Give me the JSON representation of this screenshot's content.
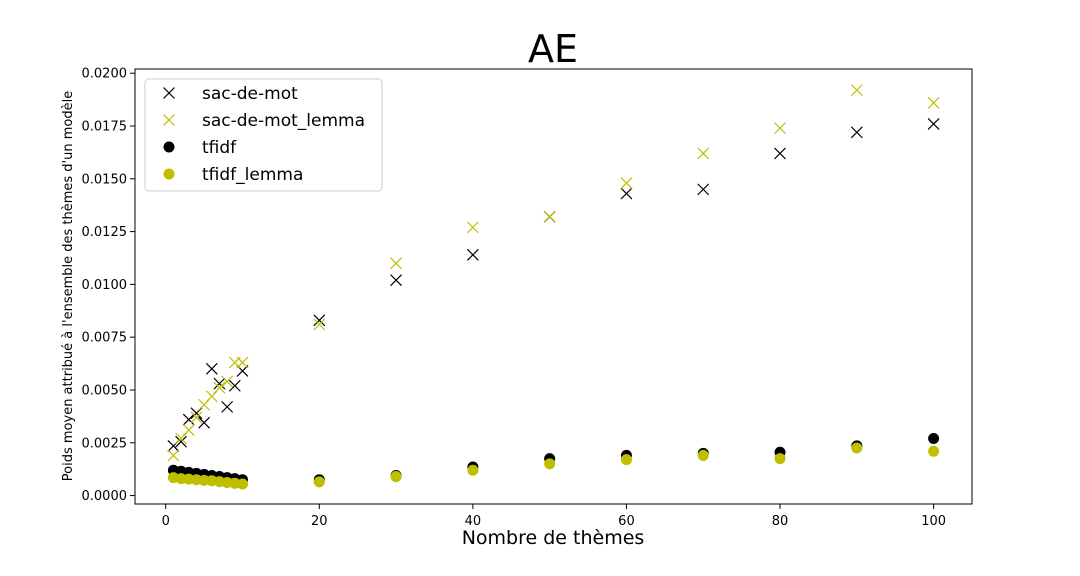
{
  "chart_data": {
    "type": "scatter",
    "title": "AE",
    "xlabel": "Nombre de thèmes",
    "ylabel": "Poids moyen attribué à l'ensemble des thèmes d'un modèle",
    "xlim": [
      -4,
      105
    ],
    "ylim": [
      -0.0004,
      0.0202
    ],
    "xticks": [
      0,
      20,
      40,
      60,
      80,
      100
    ],
    "yticks": [
      0.0,
      0.0025,
      0.005,
      0.0075,
      0.01,
      0.0125,
      0.015,
      0.0175,
      0.02
    ],
    "ytick_labels": [
      "0.0000",
      "0.0025",
      "0.0050",
      "0.0075",
      "0.0100",
      "0.0125",
      "0.0150",
      "0.0175",
      "0.0200"
    ],
    "xtick_labels": [
      "0",
      "20",
      "40",
      "60",
      "80",
      "100"
    ],
    "grid": false,
    "legend_position": "top-left",
    "x": [
      1,
      2,
      3,
      4,
      5,
      6,
      7,
      8,
      9,
      10,
      20,
      30,
      40,
      50,
      60,
      70,
      80,
      90,
      100
    ],
    "series": [
      {
        "name": "sac-de-mot",
        "marker": "x",
        "color": "#000000",
        "values": [
          0.00235,
          0.00255,
          0.0036,
          0.0039,
          0.00345,
          0.006,
          0.0053,
          0.0042,
          0.0052,
          0.0059,
          0.0083,
          0.0102,
          0.0114,
          0.0132,
          0.0143,
          0.0145,
          0.0162,
          0.0172,
          0.0176
        ]
      },
      {
        "name": "sac-de-mot_lemma",
        "marker": "x",
        "color": "#bfbf00",
        "values": [
          0.0019,
          0.0027,
          0.0031,
          0.0037,
          0.0043,
          0.0047,
          0.0051,
          0.0054,
          0.0063,
          0.0063,
          0.0081,
          0.011,
          0.0127,
          0.0132,
          0.0148,
          0.0162,
          0.0174,
          0.0192,
          0.0186
        ]
      },
      {
        "name": "tfidf",
        "marker": "o",
        "color": "#000000",
        "values": [
          0.0012,
          0.00115,
          0.0011,
          0.00105,
          0.001,
          0.00095,
          0.0009,
          0.00085,
          0.0008,
          0.00075,
          0.00075,
          0.00095,
          0.00135,
          0.00175,
          0.0019,
          0.002,
          0.00205,
          0.00235,
          0.0027
        ]
      },
      {
        "name": "tfidf_lemma",
        "marker": "o",
        "color": "#bfbf00",
        "values": [
          0.00085,
          0.0008,
          0.00078,
          0.00075,
          0.00072,
          0.0007,
          0.00066,
          0.00062,
          0.00058,
          0.00055,
          0.00065,
          0.0009,
          0.0012,
          0.0015,
          0.0017,
          0.0019,
          0.00175,
          0.00225,
          0.0021
        ]
      }
    ]
  }
}
